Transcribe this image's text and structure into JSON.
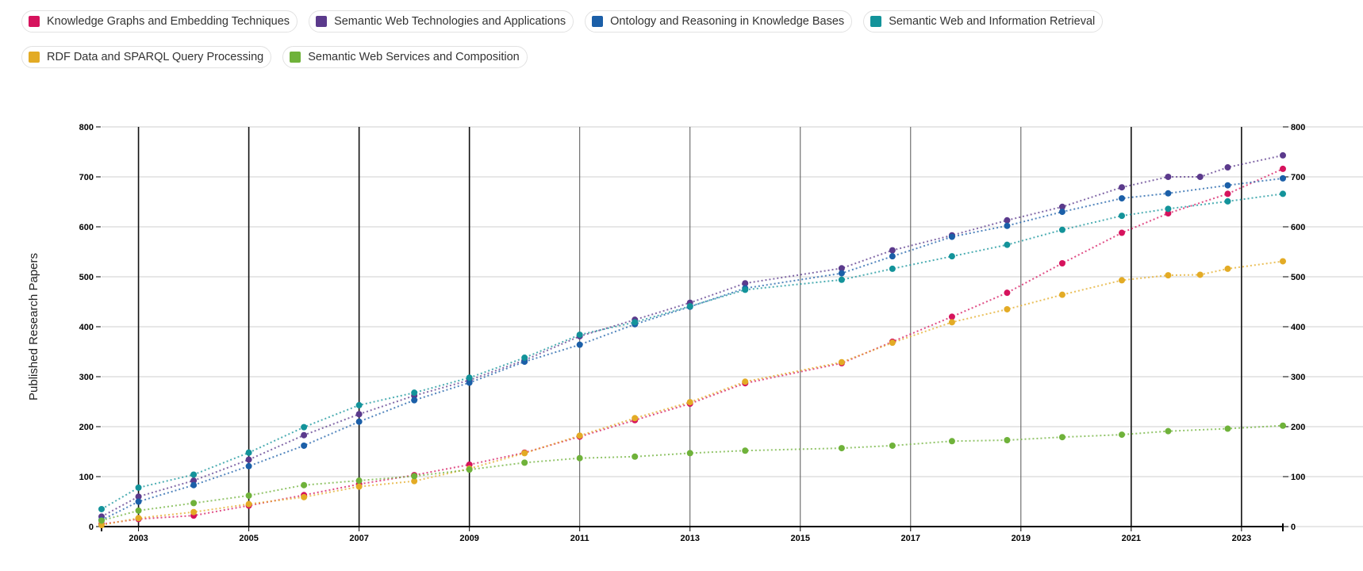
{
  "chart_data": {
    "type": "line",
    "ylabel": "Published Research Papers",
    "xlabel": "",
    "x_ticks": [
      "2003",
      "2005",
      "2007",
      "2009",
      "2011",
      "2013",
      "2015",
      "2017",
      "2019",
      "2021",
      "2023"
    ],
    "y_ticks": [
      "0",
      "100",
      "200",
      "300",
      "400",
      "500",
      "600",
      "700",
      "800"
    ],
    "ylim": [
      0,
      800
    ],
    "xlim": [
      2002.33,
      2023.75
    ],
    "grid": true,
    "legend_position": "top",
    "series": [
      {
        "name": "Knowledge Graphs and Embedding Techniques",
        "color": "#d6135d",
        "x": [
          2002.33,
          2003,
          2004,
          2005,
          2006,
          2007,
          2008,
          2009,
          2010,
          2011,
          2012,
          2013,
          2014,
          2015.75,
          2016.67,
          2017.75,
          2018.75,
          2019.75,
          2020.83,
          2021.67,
          2022.75,
          2023.75
        ],
        "y": [
          5,
          15,
          22,
          42,
          63,
          85,
          103,
          124,
          148,
          180,
          213,
          246,
          287,
          327,
          370,
          420,
          468,
          527,
          588,
          627,
          666,
          716
        ]
      },
      {
        "name": "Semantic Web Technologies and Applications",
        "color": "#5b3a8c",
        "x": [
          2002.33,
          2003,
          2004,
          2005,
          2006,
          2007,
          2008,
          2009,
          2010,
          2011,
          2012,
          2013,
          2014,
          2015.75,
          2016.67,
          2017.75,
          2018.75,
          2019.75,
          2020.83,
          2021.67,
          2022.25,
          2022.75,
          2023.75
        ],
        "y": [
          20,
          60,
          92,
          134,
          183,
          225,
          262,
          293,
          333,
          381,
          414,
          448,
          487,
          517,
          553,
          583,
          613,
          640,
          679,
          700,
          700,
          719,
          743
        ]
      },
      {
        "name": "Ontology and Reasoning in Knowledge Bases",
        "color": "#1b5fa8",
        "x": [
          2002.33,
          2003,
          2004,
          2005,
          2006,
          2007,
          2008,
          2009,
          2010,
          2011,
          2012,
          2013,
          2014,
          2015.75,
          2016.67,
          2017.75,
          2018.75,
          2019.75,
          2020.83,
          2021.67,
          2022.75,
          2023.75
        ],
        "y": [
          13,
          50,
          83,
          121,
          162,
          210,
          253,
          288,
          330,
          364,
          405,
          440,
          477,
          507,
          541,
          580,
          602,
          630,
          657,
          667,
          683,
          697
        ]
      },
      {
        "name": "Semantic Web and Information Retrieval",
        "color": "#13939a",
        "x": [
          2002.33,
          2003,
          2004,
          2005,
          2006,
          2007,
          2008,
          2009,
          2010,
          2011,
          2012,
          2013,
          2014,
          2015.75,
          2016.67,
          2017.75,
          2018.75,
          2019.75,
          2020.83,
          2021.67,
          2022.75,
          2023.75
        ],
        "y": [
          35,
          78,
          104,
          148,
          199,
          243,
          268,
          298,
          338,
          384,
          409,
          441,
          474,
          494,
          516,
          541,
          564,
          594,
          622,
          636,
          651,
          666
        ]
      },
      {
        "name": "RDF Data and SPARQL Query Processing",
        "color": "#e3ab25",
        "x": [
          2002.33,
          2003,
          2004,
          2005,
          2006,
          2007,
          2008,
          2009,
          2010,
          2011,
          2012,
          2013,
          2014,
          2015.75,
          2016.67,
          2017.75,
          2018.75,
          2019.75,
          2020.83,
          2021.67,
          2022.25,
          2022.75,
          2023.75
        ],
        "y": [
          3,
          17,
          29,
          45,
          59,
          80,
          91,
          116,
          147,
          182,
          217,
          249,
          290,
          329,
          368,
          409,
          435,
          464,
          493,
          503,
          504,
          516,
          531
        ]
      },
      {
        "name": "Semantic Web Services and Composition",
        "color": "#6fb23a",
        "x": [
          2002.33,
          2003,
          2004,
          2005,
          2006,
          2007,
          2008,
          2009,
          2010,
          2011,
          2012,
          2013,
          2014,
          2015.75,
          2016.67,
          2017.75,
          2018.75,
          2019.75,
          2020.83,
          2021.67,
          2022.75,
          2023.75
        ],
        "y": [
          12,
          32,
          47,
          62,
          83,
          92,
          101,
          114,
          128,
          137,
          140,
          147,
          152,
          157,
          162,
          171,
          173,
          179,
          184,
          191,
          196,
          202
        ]
      }
    ]
  }
}
